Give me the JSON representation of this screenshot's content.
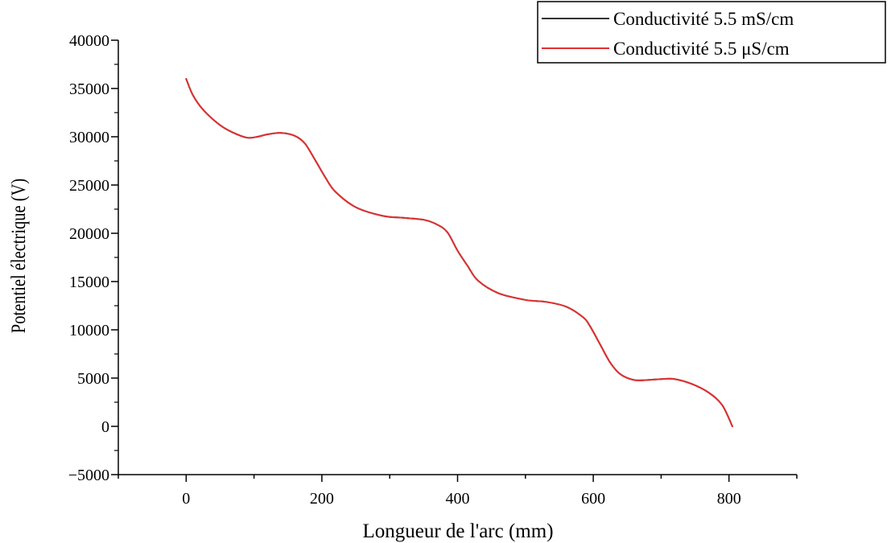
{
  "chart_data": {
    "type": "line",
    "title": "",
    "xlabel": "Longueur de l'arc (mm)",
    "ylabel": "Potentiel électrique (V)",
    "xlim": [
      -100,
      900
    ],
    "ylim": [
      -5000,
      40000
    ],
    "x_ticks": [
      "0",
      "200",
      "400",
      "600",
      "800"
    ],
    "y_ticks": [
      "-5000",
      "0",
      "5000",
      "10000",
      "15000",
      "20000",
      "25000",
      "30000",
      "35000",
      "40000"
    ],
    "legend_position": "top-right",
    "grid": false,
    "series": [
      {
        "name": "Conductivité 5.5 mS/cm",
        "color": "#333333",
        "x": [
          0,
          10,
          25,
          50,
          70,
          90,
          105,
          120,
          140,
          160,
          175,
          190,
          205,
          220,
          250,
          290,
          320,
          350,
          370,
          385,
          400,
          415,
          430,
          460,
          500,
          530,
          560,
          585,
          595,
          610,
          625,
          640,
          660,
          680,
          700,
          720,
          745,
          770,
          790,
          805
        ],
        "y": [
          36000,
          34300,
          32800,
          31200,
          30400,
          29900,
          30000,
          30250,
          30400,
          30100,
          29300,
          27600,
          25800,
          24300,
          22700,
          21800,
          21600,
          21400,
          20900,
          20100,
          18200,
          16600,
          15100,
          13800,
          13100,
          12900,
          12400,
          11300,
          10400,
          8500,
          6600,
          5400,
          4800,
          4800,
          4900,
          4900,
          4400,
          3500,
          2200,
          0
        ]
      },
      {
        "name": "Conductivité 5.5 μS/cm",
        "color": "#e03131",
        "x": [
          0,
          10,
          25,
          50,
          70,
          90,
          105,
          120,
          140,
          160,
          175,
          190,
          205,
          220,
          250,
          290,
          320,
          350,
          370,
          385,
          400,
          415,
          430,
          460,
          500,
          530,
          560,
          585,
          595,
          610,
          625,
          640,
          660,
          680,
          700,
          720,
          745,
          770,
          790,
          805
        ],
        "y": [
          36000,
          34300,
          32800,
          31200,
          30400,
          29900,
          30000,
          30250,
          30400,
          30100,
          29300,
          27600,
          25800,
          24300,
          22700,
          21800,
          21600,
          21400,
          20900,
          20100,
          18200,
          16600,
          15100,
          13800,
          13100,
          12900,
          12400,
          11300,
          10400,
          8500,
          6600,
          5400,
          4800,
          4800,
          4900,
          4900,
          4400,
          3500,
          2200,
          0
        ]
      }
    ]
  }
}
